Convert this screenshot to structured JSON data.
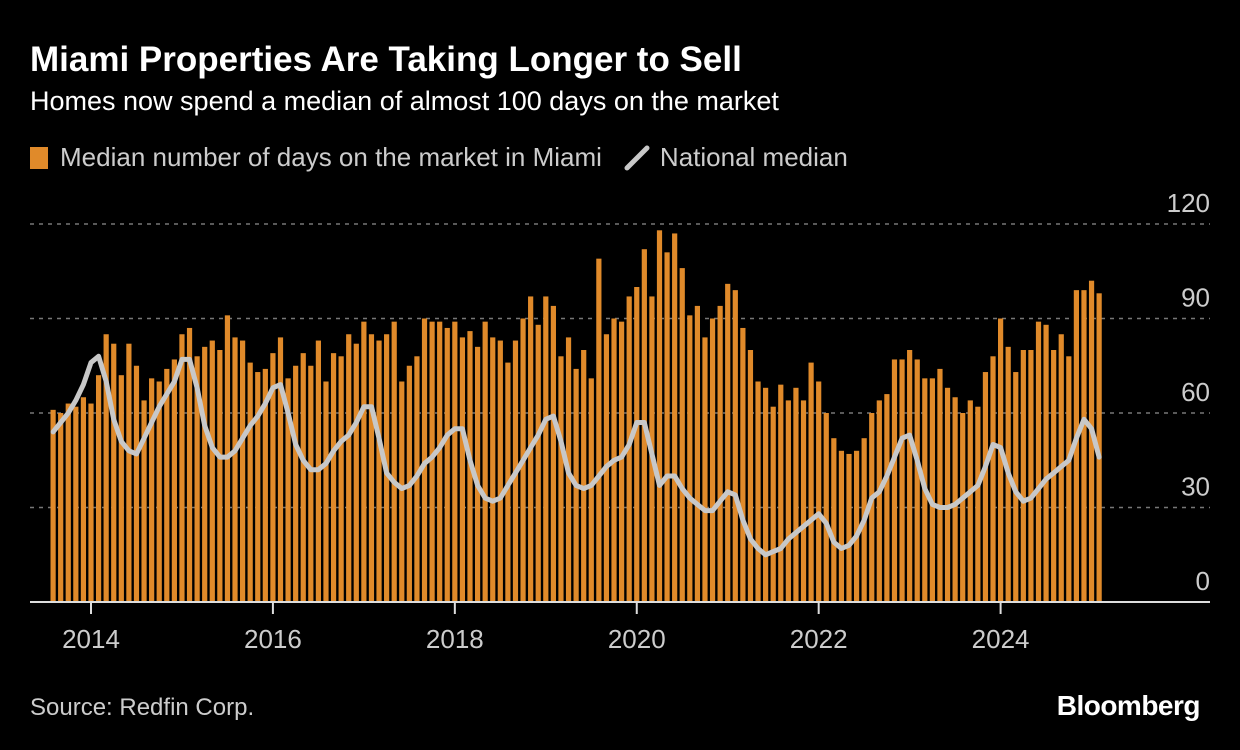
{
  "title": "Miami Properties Are Taking Longer to Sell",
  "subtitle": "Homes now spend a median of almost 100 days on the market",
  "legend": {
    "bar_label": "Median number of days on the market in Miami",
    "line_label": "National median"
  },
  "source": "Source: Redfin Corp.",
  "logo": "Bloomberg",
  "colors": {
    "bars": "#e08a2a",
    "line": "#c8c8c8",
    "background": "#000000",
    "grid": "#777777"
  },
  "chart_data": {
    "type": "bar+line",
    "x_start": "2013-08",
    "x_frequency": "monthly",
    "x_ticks": [
      "2014",
      "2016",
      "2018",
      "2020",
      "2022",
      "2024"
    ],
    "y_ticks": [
      0,
      30,
      60,
      90,
      120
    ],
    "ylim": [
      0,
      120
    ],
    "grid": true,
    "legend_position": "top-left",
    "series": [
      {
        "name": "Median number of days on the market in Miami",
        "type": "bar",
        "values": [
          61,
          60,
          63,
          62,
          65,
          63,
          72,
          85,
          82,
          72,
          82,
          75,
          64,
          71,
          70,
          74,
          77,
          85,
          87,
          78,
          81,
          83,
          80,
          91,
          84,
          83,
          76,
          73,
          74,
          79,
          84,
          71,
          75,
          79,
          75,
          83,
          70,
          79,
          78,
          85,
          82,
          89,
          85,
          83,
          85,
          89,
          70,
          75,
          78,
          90,
          89,
          89,
          87,
          89,
          84,
          86,
          81,
          89,
          84,
          83,
          76,
          83,
          90,
          97,
          88,
          97,
          94,
          78,
          84,
          74,
          80,
          71,
          109,
          85,
          90,
          89,
          97,
          100,
          112,
          97,
          118,
          111,
          117,
          106,
          91,
          94,
          84,
          90,
          94,
          101,
          99,
          87,
          80,
          70,
          68,
          62,
          69,
          64,
          68,
          64,
          76,
          70,
          60,
          52,
          48,
          47,
          48,
          52,
          60,
          64,
          66,
          77,
          77,
          80,
          77,
          71,
          71,
          74,
          68,
          65,
          60,
          64,
          62,
          73,
          78,
          90,
          81,
          73,
          80,
          80,
          89,
          88,
          80,
          85,
          78,
          99,
          99,
          102,
          98
        ]
      },
      {
        "name": "National median",
        "type": "line",
        "values": [
          54,
          57,
          60,
          64,
          69,
          76,
          78,
          70,
          58,
          51,
          48,
          47,
          52,
          57,
          62,
          66,
          70,
          77,
          77,
          68,
          56,
          49,
          46,
          46,
          48,
          52,
          56,
          59,
          63,
          68,
          69,
          60,
          50,
          45,
          42,
          42,
          44,
          48,
          51,
          53,
          57,
          62,
          62,
          52,
          41,
          38,
          36,
          37,
          40,
          44,
          46,
          49,
          53,
          55,
          55,
          45,
          37,
          33,
          32,
          33,
          37,
          41,
          45,
          49,
          53,
          58,
          59,
          51,
          41,
          37,
          36,
          37,
          40,
          43,
          45,
          46,
          50,
          57,
          57,
          47,
          37,
          40,
          40,
          36,
          33,
          31,
          29,
          29,
          32,
          35,
          34,
          26,
          20,
          17,
          15,
          16,
          17,
          20,
          22,
          24,
          26,
          28,
          25,
          19,
          17,
          18,
          21,
          26,
          33,
          35,
          40,
          46,
          52,
          53,
          45,
          36,
          31,
          30,
          30,
          31,
          33,
          35,
          37,
          43,
          50,
          49,
          41,
          35,
          32,
          33,
          36,
          39,
          41,
          43,
          45,
          52,
          58,
          55,
          46
        ]
      }
    ]
  }
}
